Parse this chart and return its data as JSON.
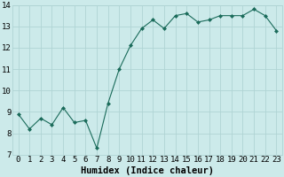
{
  "x": [
    0,
    1,
    2,
    3,
    4,
    5,
    6,
    7,
    8,
    9,
    10,
    11,
    12,
    13,
    14,
    15,
    16,
    17,
    18,
    19,
    20,
    21,
    22,
    23
  ],
  "y": [
    8.9,
    8.2,
    8.7,
    8.4,
    9.2,
    8.5,
    8.6,
    7.3,
    9.4,
    11.0,
    12.1,
    12.9,
    13.3,
    12.9,
    13.5,
    13.6,
    13.2,
    13.3,
    13.5,
    13.5,
    13.5,
    13.8,
    13.5,
    12.8
  ],
  "line_color": "#1a6b5a",
  "marker_color": "#1a6b5a",
  "bg_color": "#cceaea",
  "grid_color": "#b0d4d4",
  "xlabel": "Humidex (Indice chaleur)",
  "ylim": [
    7,
    14
  ],
  "xlim_min": -0.5,
  "xlim_max": 23.5,
  "yticks": [
    7,
    8,
    9,
    10,
    11,
    12,
    13,
    14
  ],
  "xticks": [
    0,
    1,
    2,
    3,
    4,
    5,
    6,
    7,
    8,
    9,
    10,
    11,
    12,
    13,
    14,
    15,
    16,
    17,
    18,
    19,
    20,
    21,
    22,
    23
  ],
  "xlabel_fontsize": 7.5,
  "tick_fontsize": 6.5,
  "ylabel_fontsize": 6.5
}
